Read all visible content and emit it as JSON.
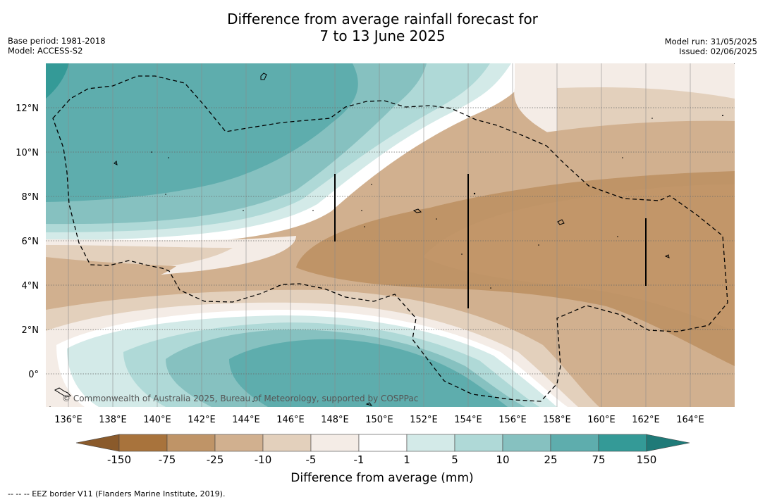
{
  "header": {
    "title_line1": "Difference from average rainfall forecast for",
    "title_line2": "7 to 13 June 2025",
    "base_period": "Base period: 1981-2018",
    "model": "Model: ACCESS-S2",
    "model_run": "Model run: 31/05/2025",
    "issued": "Issued: 02/06/2025"
  },
  "map": {
    "lat_labels": [
      "12°N",
      "10°N",
      "8°N",
      "6°N",
      "4°N",
      "2°N",
      "0°"
    ],
    "lon_labels": [
      "136°E",
      "138°E",
      "140°E",
      "142°E",
      "144°E",
      "146°E",
      "148°E",
      "150°E",
      "152°E",
      "154°E",
      "156°E",
      "158°E",
      "160°E",
      "162°E",
      "164°E"
    ],
    "credit": "© Commonwealth of Australia 2025, Bureau of Meteorology, supported by COSPPac",
    "colors": {
      "dry_150": "#a8733c",
      "dry_75": "#bf9467",
      "dry_25": "#d1b08f",
      "dry_10": "#e3d0bc",
      "dry_5": "#f4ece6",
      "neutral": "#ffffff",
      "wet_1": "#d3eae8",
      "wet_5": "#afd9d7",
      "wet_10": "#86c1c0",
      "wet_25": "#5eadad",
      "wet_75": "#349a97",
      "wet_150": "#1f7a78"
    }
  },
  "colorbar": {
    "ticks": [
      "-150",
      "-75",
      "-25",
      "-10",
      "-5",
      "-1",
      "1",
      "5",
      "10",
      "25",
      "75",
      "150"
    ],
    "title": "Difference from average (mm)"
  },
  "footnote": "--  --  -- EEZ border V11 (Flanders Marine Institute, 2019)."
}
